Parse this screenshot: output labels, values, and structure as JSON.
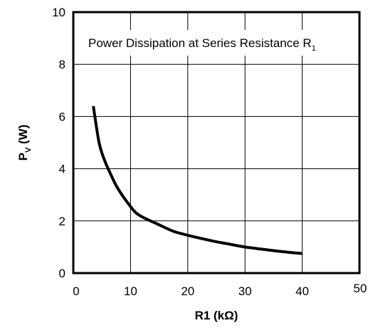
{
  "chart_data": {
    "type": "line",
    "title": "Power Dissipation at Series Resistance R",
    "title_subscript": "1",
    "xlabel": "R1 (kΩ)",
    "ylabel_main": "P",
    "ylabel_sub": "V",
    "ylabel_unit": " (W)",
    "xlim": [
      0,
      50
    ],
    "ylim": [
      0,
      10
    ],
    "x_ticks": [
      "0",
      "10",
      "20",
      "30",
      "40",
      "50"
    ],
    "y_ticks": [
      "0",
      "2",
      "4",
      "6",
      "8",
      "10"
    ],
    "grid": true,
    "series": [
      {
        "color": "#000000",
        "x": [
          3.5,
          4.5,
          5.5,
          6.5,
          7.5,
          8.5,
          10,
          11,
          12.5,
          15,
          17.5,
          20,
          22.5,
          25,
          27.5,
          30,
          32.5,
          35,
          37.5,
          40
        ],
        "y": [
          6.4,
          5.0,
          4.3,
          3.8,
          3.35,
          3.0,
          2.55,
          2.3,
          2.1,
          1.85,
          1.6,
          1.45,
          1.32,
          1.2,
          1.1,
          1.0,
          0.93,
          0.86,
          0.8,
          0.75
        ]
      }
    ]
  }
}
